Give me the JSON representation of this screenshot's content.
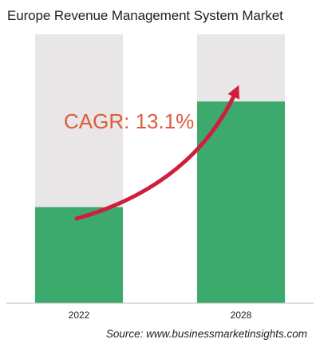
{
  "chart_data": {
    "type": "bar",
    "title": "Europe Revenue Management System Market",
    "categories": [
      "2022",
      "2028"
    ],
    "values": [
      1.0,
      2.1
    ],
    "ylim": [
      0,
      2.8
    ],
    "annotation": "CAGR: 13.1%",
    "source": "Source: www.businessmarketinsights.com",
    "grid": false,
    "legend": "none",
    "colors": {
      "bar": "#3daa6d",
      "bar_background": "#e8e6e6",
      "annotation_text": "#e05a3a",
      "arrow": "#d01f3c",
      "axis": "#bdbdbd"
    }
  }
}
